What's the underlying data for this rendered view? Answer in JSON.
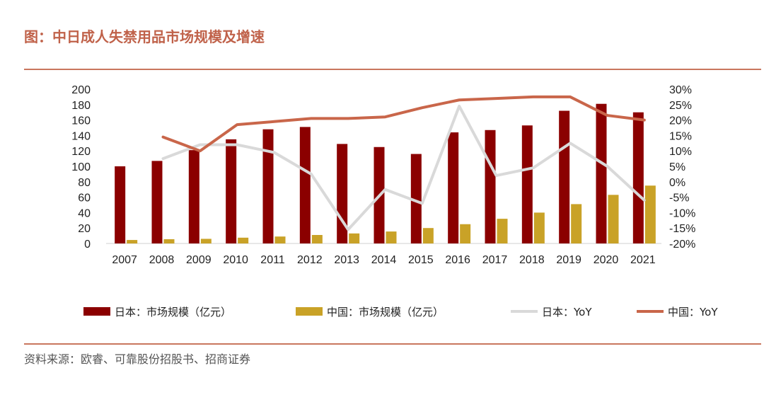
{
  "title": "图：中日成人失禁用品市场规模及增速",
  "source": "资料来源：欧睿、可靠股份招股书、招商证券",
  "chart_data": {
    "type": "bar",
    "categories": [
      "2007",
      "2008",
      "2009",
      "2010",
      "2011",
      "2012",
      "2013",
      "2014",
      "2015",
      "2016",
      "2017",
      "2018",
      "2019",
      "2020",
      "2021"
    ],
    "ylim": [
      0,
      200
    ],
    "y2lim": [
      -20,
      30
    ],
    "y_ticks": [
      "200",
      "180",
      "160",
      "140",
      "120",
      "100",
      "80",
      "60",
      "40",
      "20",
      "0"
    ],
    "y2_ticks": [
      "30%",
      "25%",
      "20%",
      "15%",
      "10%",
      "5%",
      "0%",
      "-5%",
      "-10%",
      "-15%",
      "-20%"
    ],
    "series": [
      {
        "name": "日本：市场规模（亿元）",
        "kind": "bar",
        "color": "#8b0000",
        "values": [
          100,
          107,
          121,
          135,
          148,
          151,
          129,
          125,
          116,
          144,
          147,
          153,
          172,
          181,
          170
        ]
      },
      {
        "name": "中国：市场规模（亿元）",
        "kind": "bar",
        "color": "#c9a227",
        "values": [
          4.5,
          5.5,
          6,
          7.5,
          9,
          11,
          13,
          15.5,
          20,
          25,
          32,
          40,
          51,
          63,
          75
        ]
      },
      {
        "name": "日本：YoY",
        "kind": "line",
        "axis": "right",
        "color": "#d9d9d9",
        "values": [
          null,
          7.5,
          12,
          12,
          9.5,
          2.5,
          -15.5,
          -2.5,
          -7,
          24.5,
          2,
          4.5,
          12.5,
          5,
          -6
        ]
      },
      {
        "name": "中国：YoY",
        "kind": "line",
        "axis": "right",
        "color": "#c9664a",
        "values": [
          null,
          14.5,
          10,
          18.5,
          19.5,
          20.5,
          20.5,
          21,
          24,
          26.5,
          27,
          27.5,
          27.5,
          21.5,
          20
        ]
      }
    ],
    "legend_position": "bottom",
    "grid": false
  }
}
